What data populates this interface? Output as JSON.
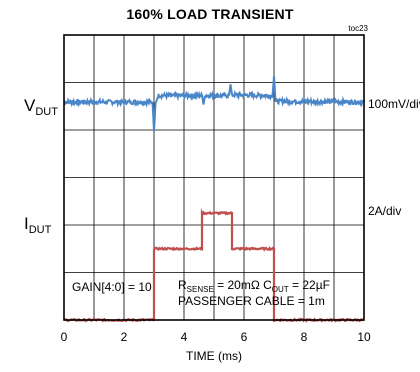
{
  "title": "160% LOAD TRANSIENT",
  "figure_tag": "toc23",
  "channels": {
    "vdut": {
      "main": "V",
      "sub": "DUT",
      "scale": "100mV/div"
    },
    "idut": {
      "main": "I",
      "sub": "DUT",
      "scale": "2A/div"
    }
  },
  "annotations": {
    "gain": "GAIN[4:0] = 10",
    "rsense_main": "R",
    "rsense_sub": "SENSE",
    "rsense_value": " = 20mΩ C",
    "cout_sub": "OUT",
    "cout_value": " = 22µF",
    "cable": "PASSENGER CABLE = 1m"
  },
  "colors": {
    "vdut": "#4a86c8",
    "idut": "#c0504d",
    "grid": "#000000"
  },
  "chart_data": {
    "type": "line",
    "title": "160% LOAD TRANSIENT",
    "xlabel": "TIME (ms)",
    "ylabel": "",
    "xlim": [
      0,
      10
    ],
    "x_ticks": [
      0,
      2,
      4,
      6,
      8,
      10
    ],
    "ylim": [
      0,
      8
    ],
    "grid": true,
    "series": [
      {
        "name": "VDUT",
        "scale": "100mV/div",
        "points": [
          [
            0,
            6.12
          ],
          [
            2.95,
            6.12
          ],
          [
            3.0,
            5.3
          ],
          [
            3.05,
            6.08
          ],
          [
            3.15,
            6.3
          ],
          [
            4.6,
            6.3
          ],
          [
            4.65,
            6.05
          ],
          [
            4.7,
            6.3
          ],
          [
            5.5,
            6.3
          ],
          [
            5.55,
            6.62
          ],
          [
            5.6,
            6.32
          ],
          [
            6.95,
            6.3
          ],
          [
            7.0,
            6.85
          ],
          [
            7.05,
            6.14
          ],
          [
            10,
            6.12
          ]
        ],
        "spikes_x": [
          3.0,
          4.65,
          5.55,
          7.0
        ]
      },
      {
        "name": "IDUT",
        "scale": "2A/div",
        "points": [
          [
            0,
            0.0
          ],
          [
            3.0,
            0.0
          ],
          [
            3.0,
            2.0
          ],
          [
            4.6,
            2.0
          ],
          [
            4.6,
            3.0
          ],
          [
            5.6,
            3.0
          ],
          [
            5.6,
            2.0
          ],
          [
            7.0,
            2.0
          ],
          [
            7.0,
            0.0
          ],
          [
            10,
            0.0
          ]
        ]
      }
    ]
  }
}
